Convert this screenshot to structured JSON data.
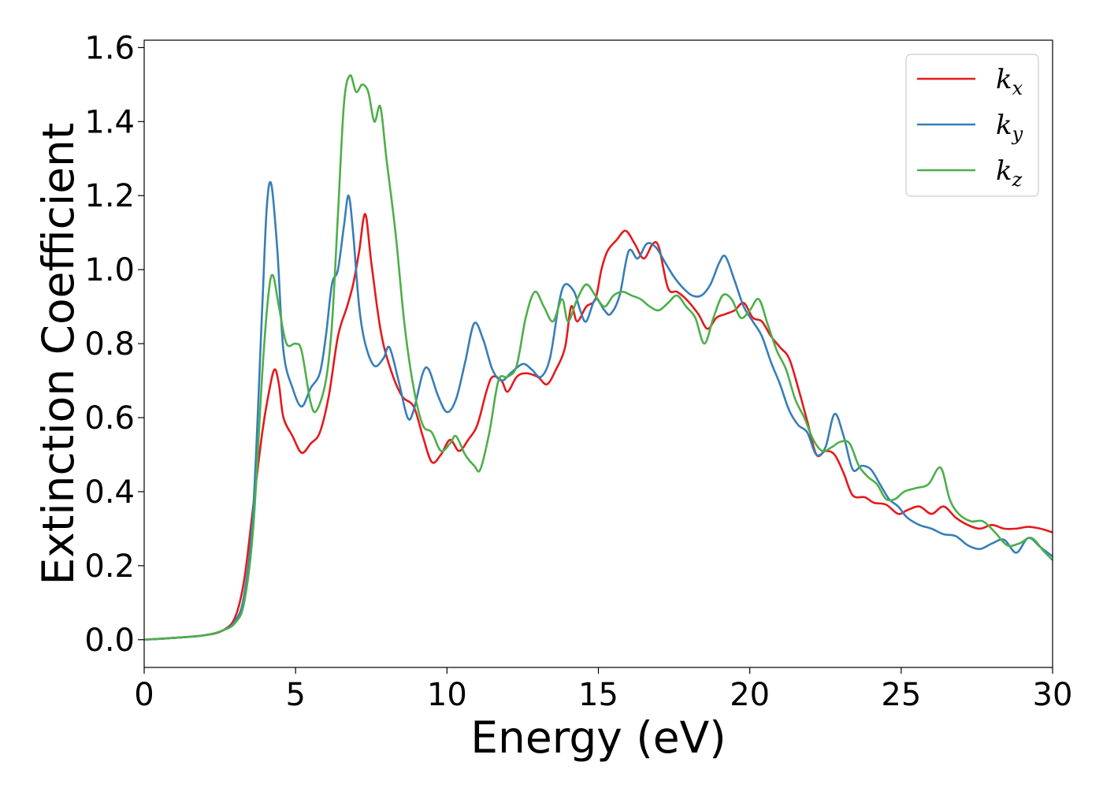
{
  "chart_data": {
    "type": "line",
    "title": "",
    "xlabel": "Energy (eV)",
    "ylabel": "Extinction Coefficient",
    "xlim": [
      0,
      30
    ],
    "ylim": [
      -0.075,
      1.62
    ],
    "xticks": [
      0,
      5,
      10,
      15,
      20,
      25,
      30
    ],
    "xtick_labels": [
      "0",
      "5",
      "10",
      "15",
      "20",
      "25",
      "30"
    ],
    "yticks": [
      0.0,
      0.2,
      0.4,
      0.6,
      0.8,
      1.0,
      1.2,
      1.4,
      1.6
    ],
    "ytick_labels": [
      "0.0",
      "0.2",
      "0.4",
      "0.6",
      "0.8",
      "1.0",
      "1.2",
      "1.4",
      "1.6"
    ],
    "grid": false,
    "legend_position": "top-right",
    "series": [
      {
        "name": "kx",
        "label_base": "k",
        "label_sub": "x",
        "color": "#e41a1c",
        "points": [
          [
            0,
            0.0
          ],
          [
            1,
            0.005
          ],
          [
            2,
            0.012
          ],
          [
            2.6,
            0.025
          ],
          [
            3.0,
            0.06
          ],
          [
            3.3,
            0.16
          ],
          [
            3.6,
            0.36
          ],
          [
            3.9,
            0.56
          ],
          [
            4.1,
            0.66
          ],
          [
            4.3,
            0.73
          ],
          [
            4.45,
            0.69
          ],
          [
            4.6,
            0.6
          ],
          [
            4.9,
            0.55
          ],
          [
            5.2,
            0.505
          ],
          [
            5.5,
            0.53
          ],
          [
            5.8,
            0.56
          ],
          [
            6.1,
            0.66
          ],
          [
            6.4,
            0.82
          ],
          [
            6.7,
            0.9
          ],
          [
            6.9,
            0.96
          ],
          [
            7.1,
            1.05
          ],
          [
            7.3,
            1.15
          ],
          [
            7.5,
            1.02
          ],
          [
            7.8,
            0.84
          ],
          [
            8.1,
            0.74
          ],
          [
            8.5,
            0.66
          ],
          [
            8.9,
            0.63
          ],
          [
            9.2,
            0.55
          ],
          [
            9.5,
            0.48
          ],
          [
            9.8,
            0.5
          ],
          [
            10.1,
            0.54
          ],
          [
            10.4,
            0.51
          ],
          [
            10.7,
            0.54
          ],
          [
            11.0,
            0.58
          ],
          [
            11.3,
            0.67
          ],
          [
            11.5,
            0.71
          ],
          [
            11.8,
            0.7
          ],
          [
            12.0,
            0.67
          ],
          [
            12.3,
            0.71
          ],
          [
            12.6,
            0.72
          ],
          [
            13.0,
            0.71
          ],
          [
            13.3,
            0.69
          ],
          [
            13.6,
            0.73
          ],
          [
            13.9,
            0.79
          ],
          [
            14.1,
            0.9
          ],
          [
            14.3,
            0.86
          ],
          [
            14.6,
            0.9
          ],
          [
            14.9,
            0.92
          ],
          [
            15.1,
            1.0
          ],
          [
            15.3,
            1.05
          ],
          [
            15.6,
            1.08
          ],
          [
            15.9,
            1.105
          ],
          [
            16.2,
            1.07
          ],
          [
            16.5,
            1.03
          ],
          [
            16.8,
            1.07
          ],
          [
            17.0,
            1.06
          ],
          [
            17.3,
            0.95
          ],
          [
            17.6,
            0.94
          ],
          [
            17.9,
            0.92
          ],
          [
            18.3,
            0.88
          ],
          [
            18.6,
            0.84
          ],
          [
            18.9,
            0.87
          ],
          [
            19.2,
            0.88
          ],
          [
            19.5,
            0.89
          ],
          [
            19.8,
            0.91
          ],
          [
            20.1,
            0.87
          ],
          [
            20.4,
            0.86
          ],
          [
            20.7,
            0.82
          ],
          [
            21.0,
            0.79
          ],
          [
            21.3,
            0.76
          ],
          [
            21.6,
            0.68
          ],
          [
            21.9,
            0.59
          ],
          [
            22.2,
            0.5
          ],
          [
            22.5,
            0.51
          ],
          [
            22.8,
            0.5
          ],
          [
            23.1,
            0.45
          ],
          [
            23.4,
            0.39
          ],
          [
            23.8,
            0.385
          ],
          [
            24.1,
            0.37
          ],
          [
            24.5,
            0.365
          ],
          [
            24.9,
            0.34
          ],
          [
            25.2,
            0.35
          ],
          [
            25.6,
            0.36
          ],
          [
            26.0,
            0.34
          ],
          [
            26.4,
            0.36
          ],
          [
            26.8,
            0.33
          ],
          [
            27.2,
            0.31
          ],
          [
            27.6,
            0.3
          ],
          [
            28.0,
            0.31
          ],
          [
            28.4,
            0.3
          ],
          [
            28.8,
            0.3
          ],
          [
            29.2,
            0.305
          ],
          [
            29.6,
            0.3
          ],
          [
            30,
            0.29
          ]
        ]
      },
      {
        "name": "ky",
        "label_base": "k",
        "label_sub": "y",
        "color": "#377eb8",
        "points": [
          [
            0,
            0.0
          ],
          [
            1,
            0.005
          ],
          [
            2,
            0.012
          ],
          [
            2.6,
            0.025
          ],
          [
            3.0,
            0.05
          ],
          [
            3.3,
            0.12
          ],
          [
            3.6,
            0.35
          ],
          [
            3.9,
            0.9
          ],
          [
            4.05,
            1.17
          ],
          [
            4.2,
            1.23
          ],
          [
            4.4,
            1.05
          ],
          [
            4.6,
            0.78
          ],
          [
            4.9,
            0.68
          ],
          [
            5.2,
            0.63
          ],
          [
            5.5,
            0.68
          ],
          [
            5.8,
            0.72
          ],
          [
            6.0,
            0.82
          ],
          [
            6.2,
            0.96
          ],
          [
            6.4,
            1.0
          ],
          [
            6.6,
            1.12
          ],
          [
            6.75,
            1.2
          ],
          [
            6.9,
            1.1
          ],
          [
            7.1,
            0.9
          ],
          [
            7.3,
            0.8
          ],
          [
            7.6,
            0.74
          ],
          [
            7.9,
            0.76
          ],
          [
            8.1,
            0.79
          ],
          [
            8.4,
            0.7
          ],
          [
            8.7,
            0.6
          ],
          [
            8.9,
            0.62
          ],
          [
            9.2,
            0.72
          ],
          [
            9.4,
            0.73
          ],
          [
            9.7,
            0.66
          ],
          [
            10.0,
            0.615
          ],
          [
            10.3,
            0.65
          ],
          [
            10.6,
            0.75
          ],
          [
            10.9,
            0.855
          ],
          [
            11.2,
            0.81
          ],
          [
            11.5,
            0.73
          ],
          [
            11.8,
            0.7
          ],
          [
            12.1,
            0.72
          ],
          [
            12.5,
            0.745
          ],
          [
            12.8,
            0.73
          ],
          [
            13.1,
            0.71
          ],
          [
            13.4,
            0.76
          ],
          [
            13.7,
            0.91
          ],
          [
            13.9,
            0.96
          ],
          [
            14.2,
            0.94
          ],
          [
            14.4,
            0.89
          ],
          [
            14.6,
            0.86
          ],
          [
            14.9,
            0.92
          ],
          [
            15.2,
            0.89
          ],
          [
            15.4,
            0.88
          ],
          [
            15.7,
            0.93
          ],
          [
            16.0,
            1.05
          ],
          [
            16.3,
            1.03
          ],
          [
            16.6,
            1.07
          ],
          [
            16.9,
            1.06
          ],
          [
            17.2,
            1.02
          ],
          [
            17.5,
            0.98
          ],
          [
            17.8,
            0.95
          ],
          [
            18.1,
            0.93
          ],
          [
            18.4,
            0.93
          ],
          [
            18.7,
            0.96
          ],
          [
            19.0,
            1.02
          ],
          [
            19.2,
            1.035
          ],
          [
            19.5,
            0.97
          ],
          [
            19.8,
            0.9
          ],
          [
            20.1,
            0.86
          ],
          [
            20.4,
            0.82
          ],
          [
            20.7,
            0.75
          ],
          [
            21.0,
            0.69
          ],
          [
            21.3,
            0.62
          ],
          [
            21.6,
            0.58
          ],
          [
            21.9,
            0.56
          ],
          [
            22.2,
            0.5
          ],
          [
            22.5,
            0.52
          ],
          [
            22.8,
            0.61
          ],
          [
            23.1,
            0.55
          ],
          [
            23.4,
            0.46
          ],
          [
            23.7,
            0.47
          ],
          [
            24.0,
            0.46
          ],
          [
            24.3,
            0.42
          ],
          [
            24.6,
            0.38
          ],
          [
            24.9,
            0.36
          ],
          [
            25.2,
            0.33
          ],
          [
            25.6,
            0.31
          ],
          [
            26.0,
            0.3
          ],
          [
            26.4,
            0.285
          ],
          [
            26.8,
            0.28
          ],
          [
            27.2,
            0.255
          ],
          [
            27.6,
            0.245
          ],
          [
            28.0,
            0.26
          ],
          [
            28.4,
            0.27
          ],
          [
            28.8,
            0.235
          ],
          [
            29.2,
            0.275
          ],
          [
            29.6,
            0.25
          ],
          [
            30,
            0.225
          ]
        ]
      },
      {
        "name": "kz",
        "label_base": "k",
        "label_sub": "z",
        "color": "#4daf4a",
        "points": [
          [
            0,
            0.0
          ],
          [
            1,
            0.005
          ],
          [
            2,
            0.012
          ],
          [
            2.6,
            0.025
          ],
          [
            3.0,
            0.045
          ],
          [
            3.3,
            0.1
          ],
          [
            3.6,
            0.3
          ],
          [
            3.9,
            0.72
          ],
          [
            4.1,
            0.93
          ],
          [
            4.25,
            0.985
          ],
          [
            4.45,
            0.9
          ],
          [
            4.7,
            0.8
          ],
          [
            5.0,
            0.8
          ],
          [
            5.2,
            0.78
          ],
          [
            5.5,
            0.64
          ],
          [
            5.7,
            0.62
          ],
          [
            6.0,
            0.7
          ],
          [
            6.2,
            0.85
          ],
          [
            6.4,
            1.15
          ],
          [
            6.6,
            1.45
          ],
          [
            6.8,
            1.525
          ],
          [
            7.0,
            1.48
          ],
          [
            7.2,
            1.5
          ],
          [
            7.4,
            1.48
          ],
          [
            7.6,
            1.4
          ],
          [
            7.8,
            1.44
          ],
          [
            8.0,
            1.3
          ],
          [
            8.3,
            1.1
          ],
          [
            8.6,
            0.85
          ],
          [
            8.9,
            0.68
          ],
          [
            9.2,
            0.58
          ],
          [
            9.5,
            0.56
          ],
          [
            9.8,
            0.51
          ],
          [
            10.1,
            0.53
          ],
          [
            10.3,
            0.55
          ],
          [
            10.6,
            0.5
          ],
          [
            10.9,
            0.47
          ],
          [
            11.1,
            0.46
          ],
          [
            11.4,
            0.56
          ],
          [
            11.7,
            0.7
          ],
          [
            12.0,
            0.71
          ],
          [
            12.3,
            0.74
          ],
          [
            12.6,
            0.87
          ],
          [
            12.9,
            0.94
          ],
          [
            13.2,
            0.9
          ],
          [
            13.5,
            0.86
          ],
          [
            13.8,
            0.92
          ],
          [
            14.0,
            0.86
          ],
          [
            14.3,
            0.92
          ],
          [
            14.6,
            0.96
          ],
          [
            14.9,
            0.93
          ],
          [
            15.2,
            0.9
          ],
          [
            15.5,
            0.93
          ],
          [
            15.8,
            0.94
          ],
          [
            16.1,
            0.93
          ],
          [
            16.4,
            0.92
          ],
          [
            16.7,
            0.9
          ],
          [
            17.0,
            0.89
          ],
          [
            17.3,
            0.91
          ],
          [
            17.6,
            0.93
          ],
          [
            17.9,
            0.9
          ],
          [
            18.2,
            0.87
          ],
          [
            18.5,
            0.8
          ],
          [
            18.8,
            0.87
          ],
          [
            19.1,
            0.93
          ],
          [
            19.4,
            0.92
          ],
          [
            19.7,
            0.87
          ],
          [
            20.0,
            0.89
          ],
          [
            20.3,
            0.92
          ],
          [
            20.6,
            0.85
          ],
          [
            20.9,
            0.78
          ],
          [
            21.2,
            0.73
          ],
          [
            21.5,
            0.65
          ],
          [
            21.8,
            0.6
          ],
          [
            22.1,
            0.54
          ],
          [
            22.4,
            0.51
          ],
          [
            22.7,
            0.52
          ],
          [
            23.0,
            0.535
          ],
          [
            23.3,
            0.53
          ],
          [
            23.6,
            0.47
          ],
          [
            23.9,
            0.44
          ],
          [
            24.2,
            0.42
          ],
          [
            24.5,
            0.38
          ],
          [
            24.8,
            0.38
          ],
          [
            25.1,
            0.4
          ],
          [
            25.5,
            0.41
          ],
          [
            25.9,
            0.42
          ],
          [
            26.3,
            0.465
          ],
          [
            26.6,
            0.38
          ],
          [
            26.9,
            0.34
          ],
          [
            27.3,
            0.32
          ],
          [
            27.7,
            0.32
          ],
          [
            28.1,
            0.29
          ],
          [
            28.5,
            0.255
          ],
          [
            28.9,
            0.26
          ],
          [
            29.3,
            0.275
          ],
          [
            29.7,
            0.24
          ],
          [
            30,
            0.215
          ]
        ]
      }
    ]
  }
}
